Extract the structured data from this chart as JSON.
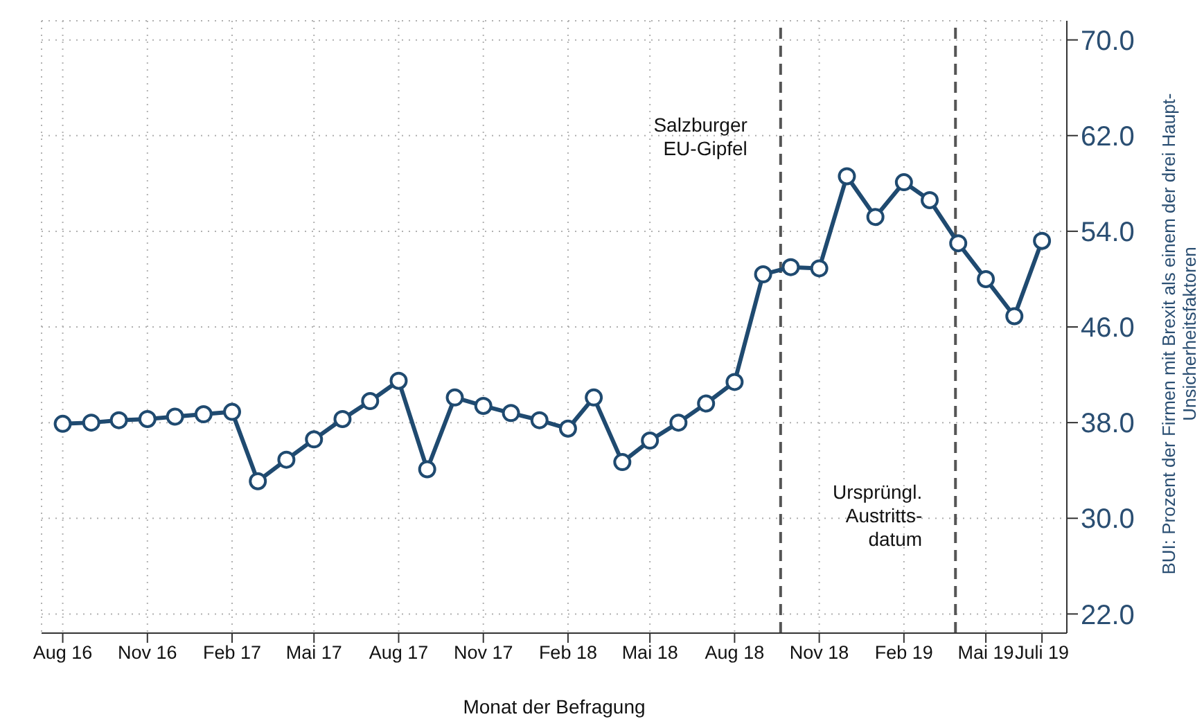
{
  "chart_data": {
    "type": "line",
    "xlabel": "Monat der Befragung",
    "ylabel": "BUI: Prozent der Firmen mit Brexit als einem der drei Haupt-\nUnsicherheitsfaktoren",
    "x": [
      "2016-08",
      "2016-09",
      "2016-10",
      "2016-11",
      "2016-12",
      "2017-01",
      "2017-02",
      "2017-03",
      "2017-04",
      "2017-05",
      "2017-06",
      "2017-07",
      "2017-08",
      "2017-09",
      "2017-10",
      "2017-11",
      "2017-12",
      "2018-01",
      "2018-02",
      "2018-03",
      "2018-04",
      "2018-05",
      "2018-06",
      "2018-07",
      "2018-08",
      "2018-09",
      "2018-10",
      "2018-11",
      "2018-12",
      "2019-01",
      "2019-02",
      "2019-03",
      "2019-04",
      "2019-05",
      "2019-06",
      "2019-07"
    ],
    "series": [
      {
        "color": "#1f4a70",
        "values": [
          37.9,
          38.0,
          38.2,
          38.3,
          38.5,
          38.7,
          38.9,
          33.1,
          34.9,
          36.6,
          38.3,
          39.8,
          41.5,
          34.1,
          40.1,
          39.4,
          38.8,
          38.2,
          37.5,
          40.1,
          34.7,
          36.5,
          38.0,
          39.6,
          41.4,
          50.4,
          51.0,
          50.9,
          58.6,
          55.2,
          58.1,
          56.6,
          53.0,
          50.0,
          46.9,
          53.2
        ]
      }
    ],
    "xlim": [
      "2016-07-09",
      "2019-07-28"
    ],
    "xticks": [
      {
        "value": "2016-08",
        "label": "Aug 16"
      },
      {
        "value": "2016-11",
        "label": "Nov 16"
      },
      {
        "value": "2017-02",
        "label": "Feb 17"
      },
      {
        "value": "2017-05",
        "label": "Mai 17"
      },
      {
        "value": "2017-08",
        "label": "Aug 17"
      },
      {
        "value": "2017-11",
        "label": "Nov 17"
      },
      {
        "value": "2018-02",
        "label": "Feb 18"
      },
      {
        "value": "2018-05",
        "label": "Mai 18"
      },
      {
        "value": "2018-08",
        "label": "Aug 18"
      },
      {
        "value": "2018-11",
        "label": "Nov 18"
      },
      {
        "value": "2019-02",
        "label": "Feb 19"
      },
      {
        "value": "2019-05",
        "label": "Mai 19"
      },
      {
        "value": "2019-07",
        "label": "Juli 19"
      }
    ],
    "ylim": [
      20.4,
      71.6
    ],
    "yticks": [
      {
        "value": 22,
        "label": "22.0"
      },
      {
        "value": 30,
        "label": "30.0"
      },
      {
        "value": 38,
        "label": "38.0"
      },
      {
        "value": 46,
        "label": "46.0"
      },
      {
        "value": 54,
        "label": "54.0"
      },
      {
        "value": 62,
        "label": "62.0"
      },
      {
        "value": 70,
        "label": "70.0"
      }
    ],
    "ref_lines": [
      {
        "axis": "x",
        "value": "2018-09-20",
        "label": "Salzburger\nEU-Gipfel",
        "color": "#555555",
        "line_style": "dashed"
      },
      {
        "axis": "x",
        "value": "2019-03-29",
        "label": "Ursprüngl.\nAustritts-\ndatum",
        "color": "#555555",
        "line_style": "dashed"
      }
    ],
    "grid": true,
    "marker": "circle",
    "line_style": "solid"
  }
}
